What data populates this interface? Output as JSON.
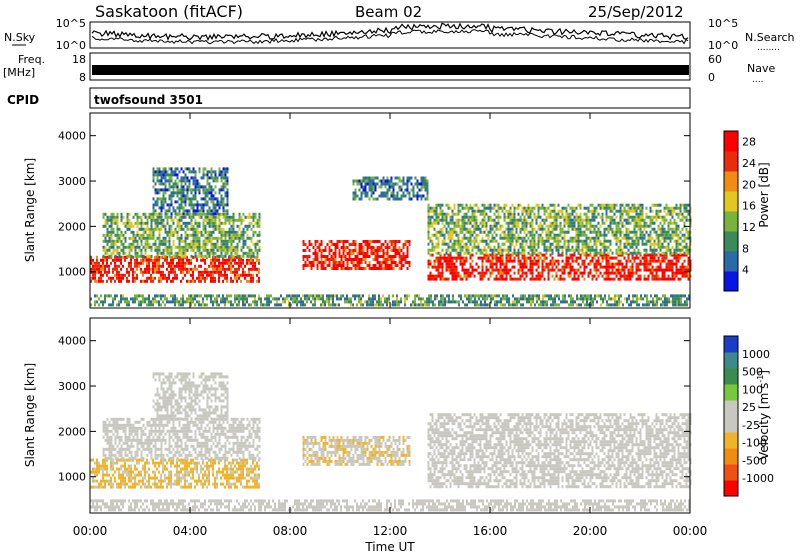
{
  "header": {
    "station": "Saskatoon (fitACF)",
    "beam": "Beam 02",
    "date": "25/Sep/2012"
  },
  "side_labels": {
    "nsky": "N.Sky",
    "nsearch": "N.Search",
    "nsearch_dots": "........",
    "freq_line1": "Freq.",
    "freq_line2": "[MHz]",
    "nave": "Nave",
    "nave_dots": "....",
    "cpid": "CPID",
    "cpid_value": "twofsound 3501"
  },
  "panel_ticks": {
    "noise_left": [
      "10^5",
      "10^0"
    ],
    "noise_right": [
      "10^5",
      "10^0"
    ],
    "freq_left": [
      "18",
      "8"
    ],
    "freq_right": [
      "60",
      "0"
    ]
  },
  "chart_data": [
    {
      "type": "heatmap",
      "title": "Power [dB]",
      "ylabel": "Slant Range [km]",
      "xlabel": "Time UT",
      "ylim": [
        200,
        4500
      ],
      "y_ticks": [
        "1000",
        "2000",
        "3000",
        "4000"
      ],
      "x_ticks": [
        "00:00",
        "04:00",
        "08:00",
        "12:00",
        "16:00",
        "20:00",
        "00:00"
      ],
      "colorbar": {
        "label": "Power [dB]",
        "ticks": [
          "4",
          "8",
          "12",
          "16",
          "20",
          "24",
          "28"
        ],
        "range": [
          0,
          30
        ],
        "colors": [
          "#0a14e6",
          "#2a6aa6",
          "#3a8a5a",
          "#78b43c",
          "#e0c81e",
          "#f08c14",
          "#e82d0c",
          "#ff0000"
        ]
      },
      "bands": [
        {
          "t": [
            0,
            6.8
          ],
          "range_km": [
            800,
            1350
          ],
          "level": 26
        },
        {
          "t": [
            0.5,
            6.8
          ],
          "range_km": [
            1350,
            2300
          ],
          "level": 12
        },
        {
          "t": [
            2.5,
            5.5
          ],
          "range_km": [
            2300,
            3300
          ],
          "level": 8
        },
        {
          "t": [
            8.5,
            12.8
          ],
          "range_km": [
            1100,
            1700
          ],
          "level": 27
        },
        {
          "t": [
            10.5,
            13.5
          ],
          "range_km": [
            2600,
            3100
          ],
          "level": 8
        },
        {
          "t": [
            13.5,
            24
          ],
          "range_km": [
            850,
            1400
          ],
          "level": 27
        },
        {
          "t": [
            13.5,
            24
          ],
          "range_km": [
            1400,
            2500
          ],
          "level": 12
        },
        {
          "t": [
            0,
            24
          ],
          "range_km": [
            250,
            500
          ],
          "level": 10
        }
      ]
    },
    {
      "type": "heatmap",
      "title": "Velocity [m s^-1]",
      "ylabel": "Slant Range [km]",
      "xlabel": "Time UT",
      "ylim": [
        200,
        4500
      ],
      "y_ticks": [
        "1000",
        "2000",
        "3000",
        "4000"
      ],
      "x_ticks": [
        "00:00",
        "04:00",
        "08:00",
        "12:00",
        "16:00",
        "20:00",
        "00:00"
      ],
      "colorbar": {
        "label": "Velocity [m s^-1]",
        "ticks": [
          "1000",
          "500",
          "100",
          "25",
          "-25",
          "-100",
          "-500",
          "-1000"
        ],
        "range": [
          -1200,
          1200
        ],
        "colors": [
          "#ff0000",
          "#f05014",
          "#f08c14",
          "#f0b428",
          "#c8c8c0",
          "#c8c8c0",
          "#78c83c",
          "#3c8c50",
          "#3c8a8a",
          "#1c3cc8"
        ]
      },
      "bands": [
        {
          "t": [
            0,
            6.8
          ],
          "range_km": [
            800,
            1400
          ],
          "level": -300
        },
        {
          "t": [
            0.5,
            6.8
          ],
          "range_km": [
            1400,
            2300
          ],
          "level": 40
        },
        {
          "t": [
            2.5,
            5.5
          ],
          "range_km": [
            2300,
            3300
          ],
          "level": 0
        },
        {
          "t": [
            8.5,
            12.8
          ],
          "range_km": [
            1300,
            1900
          ],
          "level": -200
        },
        {
          "t": [
            13.5,
            24
          ],
          "range_km": [
            800,
            2400
          ],
          "level": 0
        },
        {
          "t": [
            0,
            24
          ],
          "range_km": [
            250,
            500
          ],
          "level": 0
        }
      ]
    }
  ]
}
